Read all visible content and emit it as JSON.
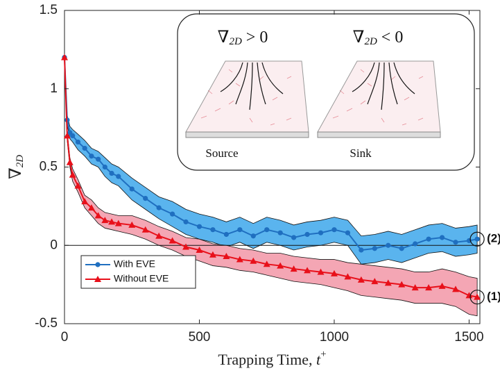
{
  "chart_data": {
    "type": "line",
    "xlabel": {
      "text": "Trapping Time, ",
      "symbol": "t",
      "superscript": "+"
    },
    "ylabel": {
      "symbol": "∇",
      "subscript": "2D"
    },
    "x": [
      0,
      10,
      20,
      30,
      50,
      75,
      100,
      125,
      150,
      175,
      200,
      250,
      300,
      350,
      400,
      450,
      500,
      550,
      600,
      650,
      700,
      750,
      800,
      850,
      900,
      950,
      1000,
      1050,
      1100,
      1150,
      1200,
      1250,
      1300,
      1350,
      1400,
      1450,
      1500,
      1530
    ],
    "series": [
      {
        "name": "With EVE",
        "color": "#1f6fc0",
        "band_color": "#5ab4ee",
        "marker": "circle",
        "values": [
          1.2,
          0.8,
          0.72,
          0.7,
          0.66,
          0.62,
          0.57,
          0.55,
          0.5,
          0.46,
          0.44,
          0.36,
          0.3,
          0.24,
          0.2,
          0.15,
          0.12,
          0.1,
          0.07,
          0.1,
          0.06,
          0.1,
          0.08,
          0.05,
          0.07,
          0.08,
          0.1,
          0.08,
          -0.03,
          -0.02,
          0,
          -0.02,
          0.01,
          0.04,
          0.05,
          0.02,
          0.03,
          0.04
        ],
        "errors": [
          0,
          0.03,
          0.04,
          0.04,
          0.05,
          0.05,
          0.05,
          0.05,
          0.06,
          0.06,
          0.06,
          0.07,
          0.07,
          0.07,
          0.08,
          0.08,
          0.08,
          0.08,
          0.08,
          0.08,
          0.08,
          0.08,
          0.08,
          0.08,
          0.08,
          0.08,
          0.08,
          0.08,
          0.09,
          0.09,
          0.09,
          0.09,
          0.09,
          0.09,
          0.09,
          0.09,
          0.09,
          0.09
        ]
      },
      {
        "name": "Without EVE",
        "color": "#e8101a",
        "band_color": "#f4a6b4",
        "marker": "triangle",
        "values": [
          1.2,
          0.7,
          0.53,
          0.45,
          0.38,
          0.28,
          0.24,
          0.19,
          0.16,
          0.15,
          0.14,
          0.13,
          0.1,
          0.06,
          0.03,
          -0.01,
          -0.03,
          -0.06,
          -0.07,
          -0.09,
          -0.1,
          -0.12,
          -0.13,
          -0.15,
          -0.16,
          -0.17,
          -0.18,
          -0.2,
          -0.22,
          -0.23,
          -0.24,
          -0.25,
          -0.27,
          -0.27,
          -0.26,
          -0.28,
          -0.32,
          -0.33
        ],
        "errors": [
          0,
          0.03,
          0.03,
          0.04,
          0.04,
          0.04,
          0.05,
          0.05,
          0.05,
          0.05,
          0.05,
          0.06,
          0.06,
          0.06,
          0.06,
          0.06,
          0.07,
          0.07,
          0.07,
          0.07,
          0.07,
          0.07,
          0.08,
          0.08,
          0.08,
          0.08,
          0.09,
          0.09,
          0.1,
          0.1,
          0.1,
          0.1,
          0.1,
          0.1,
          0.11,
          0.11,
          0.12,
          0.12
        ]
      }
    ],
    "reference_line": 0,
    "annotations": [
      {
        "text": "(2)",
        "series": 0
      },
      {
        "text": "(1)",
        "series": 1
      }
    ],
    "inset": {
      "panels": [
        {
          "symbol": "∇",
          "subscript": "2D",
          "relation": "> 0",
          "caption": "Source"
        },
        {
          "symbol": "∇",
          "subscript": "2D",
          "relation": "< 0",
          "caption": "Sink"
        }
      ]
    },
    "xlim": [
      0,
      1540
    ],
    "ylim": [
      -0.5,
      1.5
    ],
    "xticks": [
      0,
      500,
      1000,
      1500
    ],
    "yticks": [
      -0.5,
      0,
      0.5,
      1,
      1.5
    ],
    "legend": "lower-left"
  }
}
